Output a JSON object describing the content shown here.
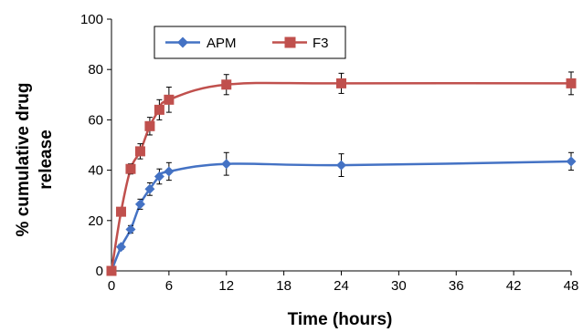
{
  "chart_data": {
    "type": "line",
    "title": "",
    "xlabel": "Time (hours)",
    "ylabel_lines": [
      "% cumulative drug",
      "release"
    ],
    "xlim": [
      0,
      48
    ],
    "ylim": [
      0,
      100
    ],
    "x_ticks": [
      0,
      6,
      12,
      18,
      24,
      30,
      36,
      42,
      48
    ],
    "y_ticks": [
      0,
      20,
      40,
      60,
      80,
      100
    ],
    "grid": false,
    "legend": {
      "placement": "top-left",
      "entries": [
        "APM",
        "F3"
      ]
    },
    "series": [
      {
        "name": "APM",
        "color": "#4472C4",
        "marker": "diamond",
        "x": [
          0,
          1,
          2,
          3,
          4,
          5,
          6,
          12,
          24,
          48
        ],
        "y": [
          0,
          9.5,
          16.5,
          26.5,
          32.5,
          37.5,
          39.5,
          42.5,
          42,
          43.5
        ],
        "err": [
          0,
          1,
          1.5,
          2,
          2.5,
          3,
          3.5,
          4.5,
          4.5,
          3.5
        ]
      },
      {
        "name": "F3",
        "color": "#C0504D",
        "marker": "square",
        "x": [
          0,
          1,
          2,
          3,
          4,
          5,
          6,
          12,
          24,
          48
        ],
        "y": [
          0,
          23.5,
          40.5,
          47.5,
          57.5,
          64,
          68,
          74,
          74.5,
          74.5
        ],
        "err": [
          0,
          1,
          2,
          3,
          3.5,
          4,
          5,
          4,
          4,
          4.5
        ]
      }
    ]
  }
}
